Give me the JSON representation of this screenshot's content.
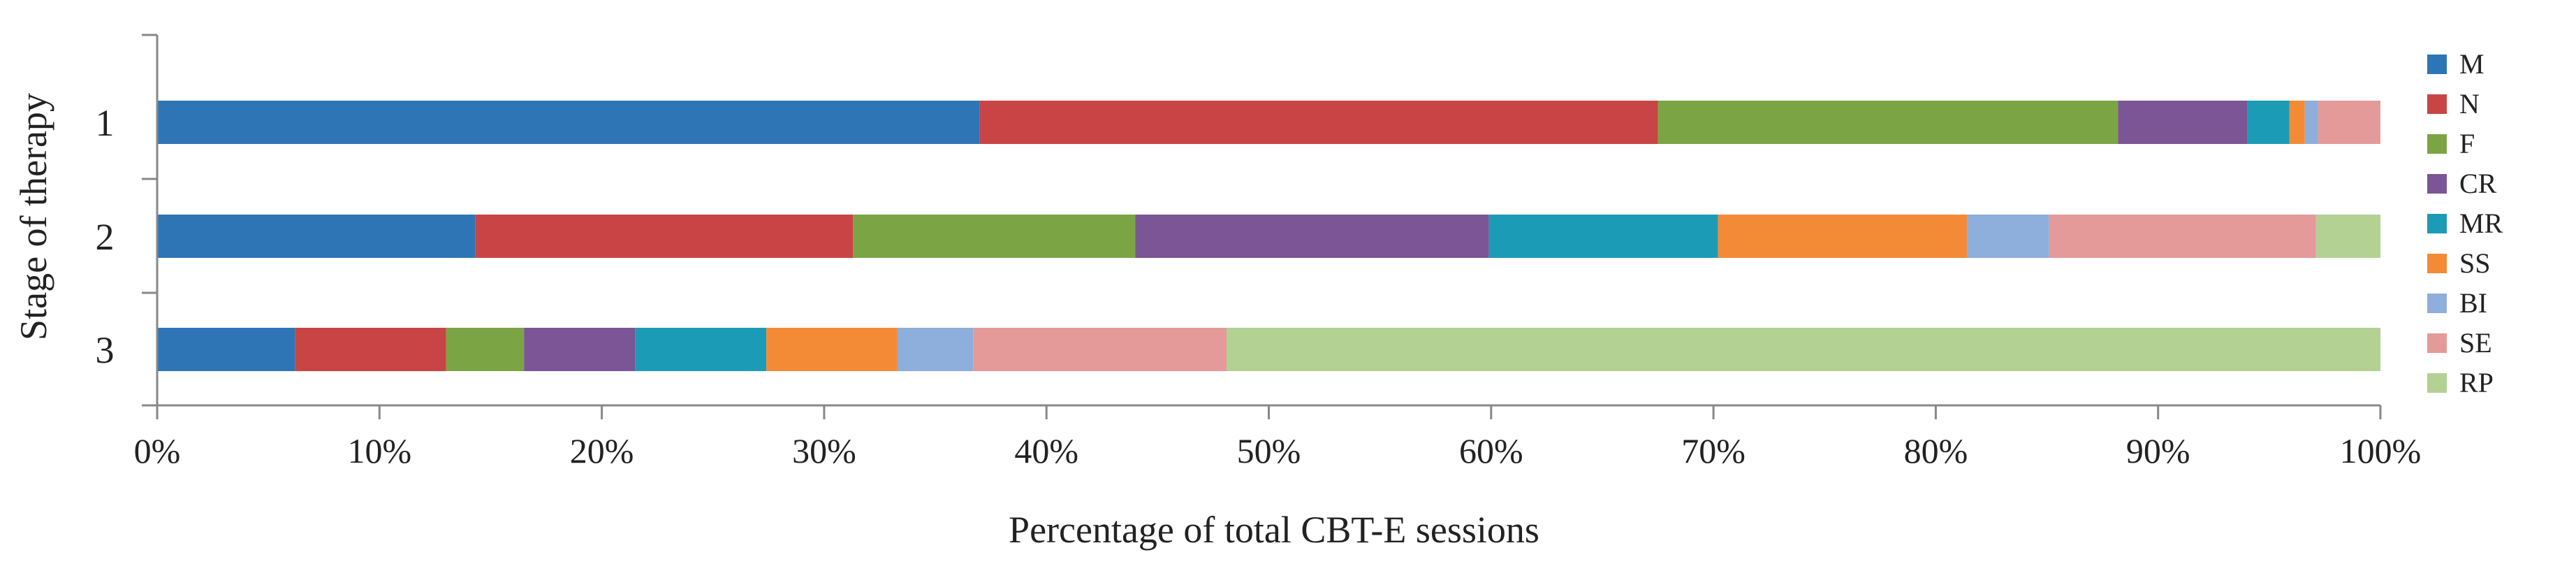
{
  "chart_data": {
    "type": "bar",
    "orientation": "horizontal",
    "stacked": true,
    "normalized": true,
    "title": "",
    "xlabel": "Percentage of total CBT-E sessions",
    "ylabel": "Stage of therapy",
    "categories": [
      "1",
      "2",
      "3"
    ],
    "xlim": [
      0,
      100
    ],
    "x_ticks": [
      "0%",
      "10%",
      "20%",
      "30%",
      "40%",
      "50%",
      "60%",
      "70%",
      "80%",
      "90%",
      "100%"
    ],
    "grid": false,
    "legend_position": "right",
    "series": [
      {
        "name": "M",
        "color": "#2E75B6",
        "values": [
          37.0,
          14.3,
          6.2
        ]
      },
      {
        "name": "N",
        "color": "#C94444",
        "values": [
          30.5,
          17.0,
          6.8
        ]
      },
      {
        "name": "F",
        "color": "#7BA544",
        "values": [
          20.7,
          12.7,
          3.5
        ]
      },
      {
        "name": "CR",
        "color": "#7B5595",
        "values": [
          5.8,
          15.9,
          5.0
        ]
      },
      {
        "name": "MR",
        "color": "#1C9BB6",
        "values": [
          1.9,
          10.3,
          5.9
        ]
      },
      {
        "name": "SS",
        "color": "#F38B36",
        "values": [
          0.7,
          11.2,
          5.9
        ]
      },
      {
        "name": "BI",
        "color": "#8EAEDB",
        "values": [
          0.6,
          3.7,
          3.4
        ]
      },
      {
        "name": "SE",
        "color": "#E49A98",
        "values": [
          2.8,
          12.0,
          11.4
        ]
      },
      {
        "name": "RP",
        "color": "#B2D193",
        "values": [
          0,
          2.9,
          51.9
        ]
      }
    ]
  }
}
